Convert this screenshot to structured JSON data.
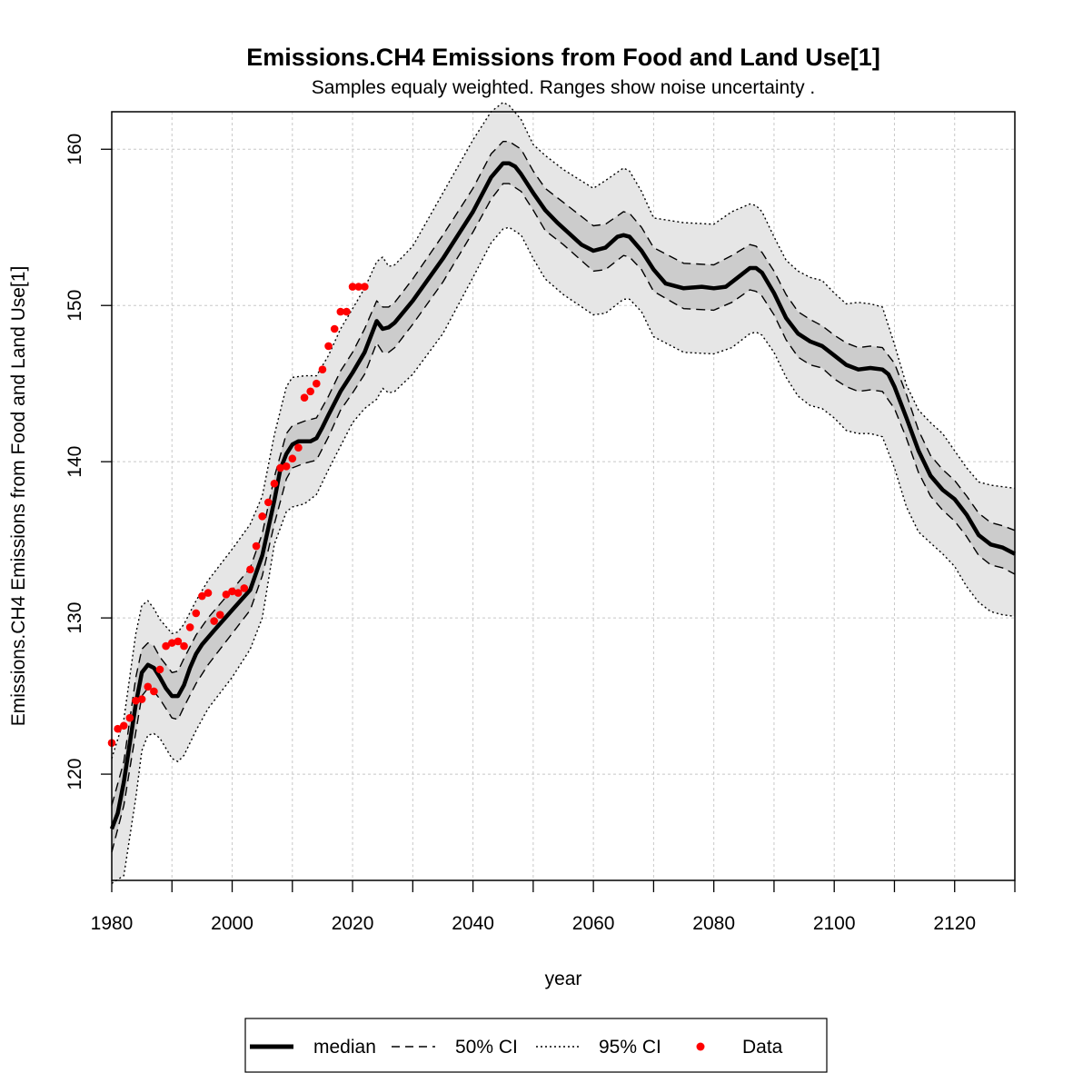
{
  "chart_data": {
    "type": "line",
    "title": "Emissions.CH4 Emissions from Food and Land Use[1]",
    "subtitle": "Samples equaly weighted. Ranges show  noise uncertainty .",
    "xlabel": "year",
    "ylabel": "Emissions.CH4 Emissions from Food and Land Use[1]",
    "xlim": [
      1980,
      2130
    ],
    "ylim": [
      113.2,
      162.4
    ],
    "xticks": [
      1980,
      2000,
      2020,
      2040,
      2060,
      2080,
      2100,
      2120
    ],
    "xticks_minor": [
      1990,
      2010,
      2030,
      2050,
      2070,
      2090,
      2110,
      2130
    ],
    "yticks": [
      120,
      130,
      140,
      150,
      160
    ],
    "grid": true,
    "legend": {
      "position": "bottom",
      "entries": [
        "median",
        "50% CI",
        "95% CI",
        "Data"
      ]
    },
    "colors": {
      "median": "#000000",
      "ci50_fill": "#cccccc",
      "ci95_fill": "#e6e6e6",
      "data": "#ff0000",
      "grid": "#c8c8c8"
    },
    "series": [
      {
        "name": "median",
        "x": [
          1980,
          1981,
          1982,
          1983,
          1984,
          1985,
          1986,
          1987,
          1988,
          1989,
          1990,
          1991,
          1992,
          1993,
          1994,
          1995,
          1997,
          2000,
          2003,
          2005,
          2007,
          2008,
          2009,
          2010,
          2011,
          2012,
          2013,
          2014,
          2015,
          2016,
          2018,
          2020,
          2022,
          2024,
          2025,
          2026,
          2027,
          2030,
          2035,
          2040,
          2043,
          2045,
          2046,
          2047,
          2048,
          2050,
          2052,
          2054,
          2056,
          2058,
          2060,
          2062,
          2064,
          2065,
          2066,
          2068,
          2070,
          2072,
          2075,
          2078,
          2080,
          2082,
          2084,
          2086,
          2087,
          2088,
          2090,
          2092,
          2094,
          2096,
          2098,
          2100,
          2102,
          2104,
          2106,
          2108,
          2109,
          2110,
          2112,
          2114,
          2116,
          2118,
          2120,
          2122,
          2124,
          2126,
          2128,
          2130
        ],
        "y": [
          116.5,
          117.5,
          119.5,
          122,
          124.5,
          126.5,
          127,
          126.8,
          126.2,
          125.5,
          125,
          125,
          125.7,
          126.8,
          127.7,
          128.3,
          129.2,
          130.5,
          131.8,
          134,
          137.5,
          139.5,
          140.5,
          141.1,
          141.3,
          141.3,
          141.3,
          141.5,
          142.2,
          143,
          144.5,
          145.7,
          147,
          149,
          148.5,
          148.6,
          148.9,
          150.3,
          153,
          156,
          158.2,
          159.1,
          159.1,
          158.9,
          158.4,
          157.2,
          156.1,
          155.3,
          154.6,
          153.9,
          153.5,
          153.7,
          154.4,
          154.5,
          154.4,
          153.5,
          152.3,
          151.4,
          151.1,
          151.2,
          151.1,
          151.2,
          151.8,
          152.4,
          152.4,
          152.1,
          150.8,
          149.2,
          148.2,
          147.7,
          147.4,
          146.8,
          146.2,
          145.9,
          146,
          145.9,
          145.6,
          144.8,
          142.8,
          140.7,
          139.1,
          138.2,
          137.6,
          136.6,
          135.3,
          134.7,
          134.5,
          134.1
        ]
      },
      {
        "name": "50% CI upper",
        "x": [
          1980,
          1982,
          1984,
          1985,
          1986,
          1987,
          1988,
          1990,
          1991,
          1992,
          1994,
          1996,
          2000,
          2003,
          2005,
          2007,
          2009,
          2010,
          2012,
          2014,
          2016,
          2018,
          2020,
          2022,
          2024,
          2025,
          2026,
          2027,
          2030,
          2035,
          2040,
          2043,
          2045,
          2046,
          2048,
          2050,
          2052,
          2055,
          2060,
          2062,
          2065,
          2066,
          2068,
          2070,
          2075,
          2080,
          2083,
          2086,
          2087,
          2088,
          2090,
          2092,
          2094,
          2096,
          2098,
          2100,
          2102,
          2104,
          2106,
          2108,
          2110,
          2112,
          2114,
          2116,
          2118,
          2120,
          2122,
          2124,
          2126,
          2128,
          2130
        ],
        "y": [
          118,
          120.8,
          126.2,
          128,
          128.4,
          128.2,
          127.5,
          126.5,
          126.6,
          127.4,
          128.9,
          130,
          131.8,
          133.2,
          135.4,
          139,
          141.8,
          142.3,
          142.6,
          142.8,
          144.2,
          145.8,
          147,
          148.5,
          150.3,
          149.9,
          149.9,
          150.2,
          151.7,
          154.5,
          157.5,
          159.7,
          160.5,
          160.5,
          160,
          158.6,
          157.5,
          156.6,
          155.1,
          155.2,
          156,
          155.9,
          155,
          153.7,
          152.7,
          152.6,
          153.2,
          153.9,
          153.8,
          153.4,
          152.2,
          150.7,
          149.6,
          149.1,
          148.7,
          148.1,
          147.6,
          147.3,
          147.4,
          147.3,
          146.3,
          144.3,
          142,
          140.4,
          139.5,
          138.8,
          137.8,
          136.7,
          136.1,
          135.9,
          135.6
        ]
      },
      {
        "name": "50% CI lower",
        "x": [
          1980,
          1982,
          1984,
          1985,
          1986,
          1987,
          1988,
          1990,
          1991,
          1992,
          1994,
          1996,
          2000,
          2003,
          2005,
          2007,
          2009,
          2010,
          2012,
          2014,
          2016,
          2018,
          2020,
          2022,
          2024,
          2025,
          2026,
          2027,
          2030,
          2035,
          2040,
          2043,
          2045,
          2046,
          2048,
          2050,
          2052,
          2055,
          2060,
          2062,
          2065,
          2066,
          2068,
          2070,
          2075,
          2080,
          2083,
          2086,
          2087,
          2088,
          2090,
          2092,
          2094,
          2096,
          2098,
          2100,
          2102,
          2104,
          2106,
          2108,
          2110,
          2112,
          2114,
          2116,
          2118,
          2120,
          2122,
          2124,
          2126,
          2128,
          2130
        ],
        "y": [
          115,
          118,
          122.7,
          125,
          125.5,
          125.3,
          124.8,
          123.6,
          123.5,
          124.3,
          125.8,
          127,
          129,
          130.5,
          132.7,
          136,
          138.9,
          139.6,
          139.9,
          140.1,
          141.6,
          143.3,
          144.4,
          145.6,
          147.6,
          147,
          147,
          147.3,
          148.8,
          151.5,
          154.7,
          156.8,
          157.8,
          157.8,
          157.3,
          156.1,
          154.8,
          153.9,
          152.2,
          152.3,
          153.2,
          153.1,
          152.3,
          150.9,
          149.8,
          149.7,
          150.2,
          151,
          150.9,
          150.6,
          149.4,
          147.8,
          146.7,
          146.2,
          146,
          145.3,
          144.8,
          144.5,
          144.6,
          144.5,
          143.4,
          141.5,
          139.3,
          137.8,
          136.9,
          136.2,
          135.2,
          134,
          133.4,
          133.2,
          132.8
        ]
      },
      {
        "name": "95% CI upper",
        "x": [
          1980,
          1982,
          1984,
          1985,
          1986,
          1987,
          1988,
          1990,
          1991,
          1992,
          1994,
          1996,
          2000,
          2003,
          2005,
          2007,
          2009,
          2010,
          2012,
          2014,
          2016,
          2018,
          2020,
          2022,
          2024,
          2025,
          2026,
          2027,
          2030,
          2035,
          2040,
          2043,
          2045,
          2046,
          2048,
          2050,
          2052,
          2055,
          2060,
          2062,
          2065,
          2066,
          2068,
          2070,
          2075,
          2080,
          2083,
          2086,
          2087,
          2088,
          2090,
          2092,
          2094,
          2096,
          2098,
          2100,
          2102,
          2104,
          2106,
          2108,
          2110,
          2112,
          2114,
          2116,
          2118,
          2120,
          2122,
          2124,
          2126,
          2128,
          2130
        ],
        "y": [
          121,
          123.5,
          129,
          130.8,
          131.1,
          130.6,
          129.9,
          129,
          129.1,
          129.6,
          131.1,
          132.4,
          134.4,
          136,
          137.8,
          141.7,
          144.8,
          145.4,
          145.5,
          145.5,
          146.8,
          148.5,
          149.8,
          151.1,
          152.8,
          153.1,
          152.5,
          152.6,
          153.8,
          157.2,
          160.6,
          162.4,
          163,
          162.8,
          161.9,
          160.3,
          159.6,
          158.7,
          157.5,
          158,
          158.8,
          158.6,
          157.3,
          155.6,
          155.3,
          155.2,
          156,
          156.5,
          156.4,
          156,
          154.4,
          152.9,
          152.2,
          151.8,
          151.6,
          150.8,
          150.1,
          150.2,
          150.1,
          149.9,
          147.5,
          144.9,
          143.3,
          142.5,
          141.8,
          140.7,
          139.6,
          138.7,
          138.5,
          138.4,
          138.3
        ]
      },
      {
        "name": "95% CI lower",
        "x": [
          1980,
          1982,
          1984,
          1985,
          1986,
          1987,
          1988,
          1990,
          1991,
          1992,
          1994,
          1996,
          2000,
          2003,
          2005,
          2007,
          2009,
          2010,
          2012,
          2014,
          2016,
          2018,
          2020,
          2022,
          2024,
          2025,
          2026,
          2027,
          2030,
          2035,
          2040,
          2043,
          2045,
          2046,
          2048,
          2050,
          2052,
          2055,
          2060,
          2062,
          2065,
          2066,
          2068,
          2070,
          2075,
          2080,
          2083,
          2086,
          2087,
          2088,
          2090,
          2092,
          2094,
          2096,
          2098,
          2100,
          2102,
          2104,
          2106,
          2108,
          2110,
          2112,
          2114,
          2116,
          2118,
          2120,
          2122,
          2124,
          2126,
          2128,
          2130
        ],
        "y": [
          113,
          113.5,
          118.5,
          121.5,
          122.5,
          122.6,
          122.3,
          121,
          120.8,
          121.2,
          122.8,
          124.2,
          126.2,
          128,
          130,
          134.7,
          136.8,
          137.1,
          137.3,
          137.9,
          139.5,
          141,
          142.5,
          143.4,
          144,
          144.7,
          144.4,
          144.5,
          145.6,
          148.2,
          151.8,
          154,
          154.9,
          155,
          154.5,
          153,
          151.7,
          150.7,
          149.4,
          149.5,
          150.4,
          150.4,
          149.6,
          148,
          147,
          146.9,
          147.3,
          148.2,
          148.3,
          148.1,
          147,
          145.4,
          144.2,
          143.6,
          143.4,
          142.8,
          142,
          141.8,
          141.8,
          141.6,
          139.6,
          137.1,
          135.5,
          134.8,
          134.1,
          133.3,
          132,
          131,
          130.4,
          130.2,
          130.1
        ]
      },
      {
        "name": "Data",
        "x": [
          1980,
          1981,
          1982,
          1983,
          1984,
          1985,
          1986,
          1987,
          1988,
          1989,
          1990,
          1991,
          1992,
          1993,
          1994,
          1995,
          1996,
          1997,
          1998,
          1999,
          2000,
          2001,
          2002,
          2003,
          2004,
          2005,
          2006,
          2007,
          2008,
          2009,
          2010,
          2011,
          2012,
          2013,
          2014,
          2015,
          2016,
          2017,
          2018,
          2019,
          2020,
          2021,
          2022
        ],
        "y": [
          122,
          122.9,
          123.1,
          123.6,
          124.7,
          124.8,
          125.6,
          125.3,
          126.7,
          128.2,
          128.4,
          128.5,
          128.2,
          129.4,
          130.3,
          131.4,
          131.6,
          129.8,
          130.2,
          131.5,
          131.7,
          131.6,
          131.9,
          133.1,
          134.6,
          136.5,
          137.4,
          138.6,
          139.6,
          139.7,
          140.2,
          140.9,
          144.1,
          144.5,
          145,
          145.9,
          147.4,
          148.5,
          149.6,
          149.6,
          151.2,
          151.2,
          151.2
        ]
      }
    ]
  }
}
